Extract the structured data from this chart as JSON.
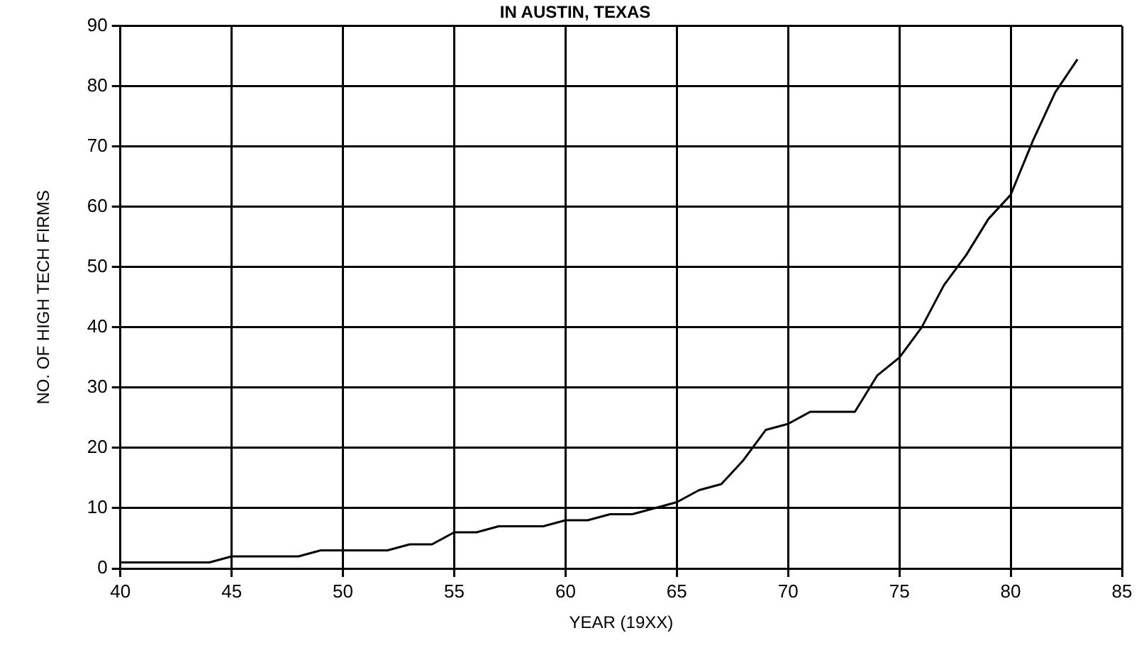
{
  "chart_data": {
    "type": "line",
    "title": "IN AUSTIN, TEXAS",
    "xlabel": "YEAR (19XX)",
    "ylabel": "NO. OF HIGH TECH FIRMS",
    "x": [
      40,
      41,
      42,
      43,
      44,
      45,
      46,
      47,
      48,
      49,
      50,
      51,
      52,
      53,
      54,
      55,
      56,
      57,
      58,
      59,
      60,
      61,
      62,
      63,
      64,
      65,
      66,
      67,
      68,
      69,
      70,
      71,
      72,
      73,
      74,
      75,
      76,
      77,
      78,
      79,
      80,
      81,
      82,
      83
    ],
    "series": [
      {
        "color": "#000000",
        "values": [
          1,
          1,
          1,
          1,
          1,
          2,
          2,
          2,
          2,
          3,
          3,
          3,
          3,
          4,
          4,
          6,
          6,
          7,
          7,
          7,
          8,
          8,
          9,
          9,
          10,
          11,
          13,
          14,
          18,
          23,
          24,
          26,
          26,
          26,
          32,
          35,
          40,
          47,
          52,
          58,
          62,
          71,
          79,
          84.5
        ]
      }
    ],
    "xlim": [
      40,
      85
    ],
    "xticks": [
      40,
      45,
      50,
      55,
      60,
      65,
      70,
      75,
      80,
      85
    ],
    "ylim": [
      0,
      90
    ],
    "yticks": [
      0,
      10,
      20,
      30,
      40,
      50,
      60,
      70,
      80,
      90
    ],
    "grid": true,
    "legend": false,
    "marker": "none",
    "line_style": "solid"
  }
}
